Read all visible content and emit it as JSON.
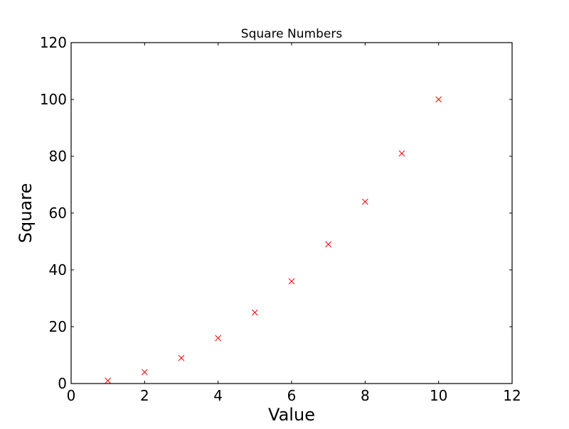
{
  "chart_data": {
    "type": "scatter",
    "title": "Square Numbers",
    "xlabel": "Value",
    "ylabel": "Square",
    "xlim": [
      0,
      12
    ],
    "ylim": [
      0,
      120
    ],
    "xticks": [
      "0",
      "2",
      "4",
      "6",
      "8",
      "10",
      "12"
    ],
    "yticks": [
      "0",
      "20",
      "40",
      "60",
      "80",
      "100",
      "120"
    ],
    "marker": "x",
    "color": "#ff0000",
    "grid": false,
    "x": [
      1,
      2,
      3,
      4,
      5,
      6,
      7,
      8,
      9,
      10
    ],
    "y": [
      1,
      4,
      9,
      16,
      25,
      36,
      49,
      64,
      81,
      100
    ]
  }
}
